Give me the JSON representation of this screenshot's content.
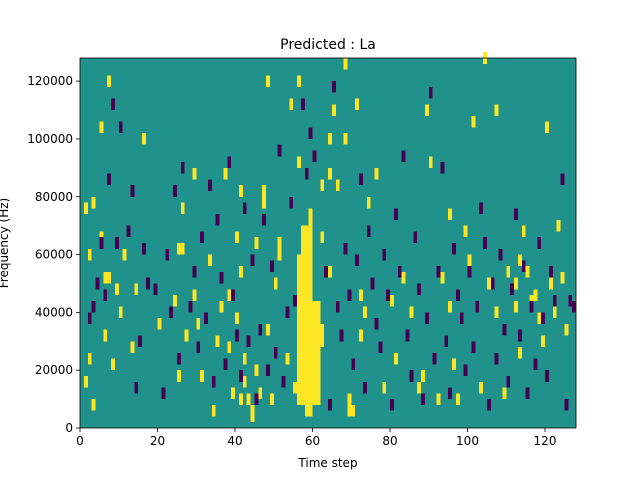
{
  "figure": {
    "title": "Predicted : La"
  },
  "chart_data": {
    "type": "heatmap",
    "title": "Predicted : La",
    "xlabel": "Time step",
    "ylabel": "Frequency (Hz)",
    "xlim": [
      0,
      128
    ],
    "ylim": [
      0,
      128000
    ],
    "xticks": [
      0,
      20,
      40,
      60,
      80,
      100,
      120
    ],
    "yticks": [
      0,
      20000,
      40000,
      60000,
      80000,
      100000,
      120000
    ],
    "xtick_labels": [
      "0",
      "20",
      "40",
      "60",
      "80",
      "100",
      "120"
    ],
    "ytick_labels": [
      "0",
      "20000",
      "40000",
      "60000",
      "80000",
      "100000",
      "120000"
    ],
    "grid": false,
    "legend": "none",
    "colors": {
      "background": "#21918c",
      "high": "#fde725",
      "low": "#440154"
    },
    "value_levels": {
      "background": 0.5,
      "high": 1,
      "low": 0
    },
    "cell_height_hz": 4000,
    "high_columns": [
      [
        56,
        8000,
        60000
      ],
      [
        57,
        8000,
        70000
      ],
      [
        58,
        4000,
        70000
      ],
      [
        59,
        4000,
        76000
      ],
      [
        60,
        8000,
        44000
      ],
      [
        61,
        8000,
        44000
      ],
      [
        62,
        28000,
        36000
      ]
    ],
    "high_cells": [
      [
        1,
        14000
      ],
      [
        1,
        74000
      ],
      [
        2,
        22000
      ],
      [
        2,
        58000
      ],
      [
        3,
        6000
      ],
      [
        3,
        76000
      ],
      [
        5,
        102000
      ],
      [
        5,
        64000
      ],
      [
        6,
        50000
      ],
      [
        6,
        30000
      ],
      [
        7,
        118000
      ],
      [
        7,
        50000
      ],
      [
        8,
        20000
      ],
      [
        9,
        46000
      ],
      [
        10,
        38000
      ],
      [
        11,
        58000
      ],
      [
        13,
        26000
      ],
      [
        14,
        46000
      ],
      [
        16,
        98000
      ],
      [
        20,
        34000
      ],
      [
        24,
        42000
      ],
      [
        25,
        60000
      ],
      [
        25,
        16000
      ],
      [
        26,
        74000
      ],
      [
        26,
        60000
      ],
      [
        27,
        30000
      ],
      [
        29,
        86000
      ],
      [
        29,
        44000
      ],
      [
        30,
        34000
      ],
      [
        31,
        16000
      ],
      [
        33,
        56000
      ],
      [
        34,
        4000
      ],
      [
        35,
        28000
      ],
      [
        36,
        40000
      ],
      [
        37,
        86000
      ],
      [
        38,
        44000
      ],
      [
        38,
        26000
      ],
      [
        39,
        10000
      ],
      [
        40,
        64000
      ],
      [
        40,
        36000
      ],
      [
        41,
        80000
      ],
      [
        41,
        52000
      ],
      [
        41,
        8000
      ],
      [
        42,
        22000
      ],
      [
        42,
        14000
      ],
      [
        43,
        8000
      ],
      [
        44,
        4000
      ],
      [
        44,
        2000
      ],
      [
        45,
        62000
      ],
      [
        45,
        18000
      ],
      [
        46,
        10000
      ],
      [
        47,
        80000
      ],
      [
        47,
        76000
      ],
      [
        48,
        118000
      ],
      [
        48,
        32000
      ],
      [
        49,
        8000
      ],
      [
        50,
        48000
      ],
      [
        51,
        62000
      ],
      [
        51,
        58000
      ],
      [
        53,
        22000
      ],
      [
        54,
        110000
      ],
      [
        55,
        12000
      ],
      [
        56,
        90000
      ],
      [
        56,
        118000
      ],
      [
        62,
        82000
      ],
      [
        62,
        64000
      ],
      [
        64,
        98000
      ],
      [
        64,
        86000
      ],
      [
        64,
        52000
      ],
      [
        65,
        108000
      ],
      [
        66,
        82000
      ],
      [
        68,
        124000
      ],
      [
        68,
        98000
      ],
      [
        69,
        8000
      ],
      [
        69,
        4000
      ],
      [
        70,
        4000
      ],
      [
        71,
        110000
      ],
      [
        72,
        44000
      ],
      [
        72,
        30000
      ],
      [
        73,
        38000
      ],
      [
        74,
        76000
      ],
      [
        76,
        86000
      ],
      [
        78,
        12000
      ],
      [
        80,
        42000
      ],
      [
        81,
        22000
      ],
      [
        83,
        50000
      ],
      [
        85,
        38000
      ],
      [
        87,
        12000
      ],
      [
        88,
        16000
      ],
      [
        89,
        108000
      ],
      [
        90,
        90000
      ],
      [
        92,
        8000
      ],
      [
        93,
        50000
      ],
      [
        95,
        40000
      ],
      [
        95,
        72000
      ],
      [
        96,
        20000
      ],
      [
        97,
        8000
      ],
      [
        99,
        66000
      ],
      [
        100,
        56000
      ],
      [
        101,
        104000
      ],
      [
        103,
        12000
      ],
      [
        104,
        126000
      ],
      [
        105,
        48000
      ],
      [
        107,
        108000
      ],
      [
        107,
        38000
      ],
      [
        109,
        10000
      ],
      [
        110,
        52000
      ],
      [
        112,
        48000
      ],
      [
        112,
        40000
      ],
      [
        113,
        56000
      ],
      [
        113,
        24000
      ],
      [
        114,
        66000
      ],
      [
        115,
        52000
      ],
      [
        116,
        42000
      ],
      [
        117,
        44000
      ],
      [
        118,
        36000
      ],
      [
        119,
        28000
      ],
      [
        120,
        102000
      ],
      [
        121,
        48000
      ],
      [
        122,
        38000
      ],
      [
        123,
        68000
      ],
      [
        124,
        50000
      ],
      [
        125,
        32000
      ]
    ],
    "low_cells": [
      [
        2,
        36000
      ],
      [
        3,
        40000
      ],
      [
        4,
        48000
      ],
      [
        5,
        62000
      ],
      [
        6,
        44000
      ],
      [
        7,
        84000
      ],
      [
        8,
        110000
      ],
      [
        9,
        62000
      ],
      [
        10,
        102000
      ],
      [
        12,
        66000
      ],
      [
        13,
        80000
      ],
      [
        14,
        12000
      ],
      [
        15,
        28000
      ],
      [
        16,
        60000
      ],
      [
        17,
        48000
      ],
      [
        19,
        46000
      ],
      [
        21,
        10000
      ],
      [
        22,
        58000
      ],
      [
        23,
        38000
      ],
      [
        24,
        80000
      ],
      [
        25,
        22000
      ],
      [
        26,
        88000
      ],
      [
        28,
        40000
      ],
      [
        29,
        52000
      ],
      [
        30,
        26000
      ],
      [
        31,
        64000
      ],
      [
        32,
        36000
      ],
      [
        33,
        82000
      ],
      [
        34,
        14000
      ],
      [
        35,
        70000
      ],
      [
        36,
        50000
      ],
      [
        37,
        20000
      ],
      [
        38,
        90000
      ],
      [
        39,
        44000
      ],
      [
        40,
        30000
      ],
      [
        41,
        16000
      ],
      [
        42,
        74000
      ],
      [
        43,
        28000
      ],
      [
        44,
        56000
      ],
      [
        45,
        8000
      ],
      [
        46,
        32000
      ],
      [
        47,
        70000
      ],
      [
        48,
        18000
      ],
      [
        49,
        54000
      ],
      [
        50,
        24000
      ],
      [
        51,
        94000
      ],
      [
        52,
        14000
      ],
      [
        53,
        38000
      ],
      [
        54,
        76000
      ],
      [
        55,
        42000
      ],
      [
        57,
        110000
      ],
      [
        58,
        86000
      ],
      [
        59,
        100000
      ],
      [
        60,
        92000
      ],
      [
        63,
        52000
      ],
      [
        64,
        6000
      ],
      [
        65,
        116000
      ],
      [
        66,
        40000
      ],
      [
        67,
        30000
      ],
      [
        68,
        60000
      ],
      [
        69,
        44000
      ],
      [
        70,
        20000
      ],
      [
        71,
        56000
      ],
      [
        72,
        84000
      ],
      [
        73,
        12000
      ],
      [
        74,
        66000
      ],
      [
        75,
        48000
      ],
      [
        76,
        34000
      ],
      [
        77,
        26000
      ],
      [
        78,
        58000
      ],
      [
        79,
        44000
      ],
      [
        80,
        6000
      ],
      [
        81,
        72000
      ],
      [
        82,
        52000
      ],
      [
        83,
        92000
      ],
      [
        84,
        30000
      ],
      [
        85,
        16000
      ],
      [
        86,
        64000
      ],
      [
        87,
        46000
      ],
      [
        88,
        8000
      ],
      [
        89,
        36000
      ],
      [
        90,
        114000
      ],
      [
        91,
        22000
      ],
      [
        92,
        52000
      ],
      [
        93,
        88000
      ],
      [
        94,
        28000
      ],
      [
        95,
        10000
      ],
      [
        96,
        60000
      ],
      [
        97,
        44000
      ],
      [
        98,
        36000
      ],
      [
        99,
        18000
      ],
      [
        100,
        52000
      ],
      [
        101,
        26000
      ],
      [
        102,
        40000
      ],
      [
        103,
        74000
      ],
      [
        104,
        62000
      ],
      [
        105,
        6000
      ],
      [
        106,
        48000
      ],
      [
        107,
        22000
      ],
      [
        108,
        58000
      ],
      [
        109,
        32000
      ],
      [
        110,
        14000
      ],
      [
        111,
        46000
      ],
      [
        112,
        72000
      ],
      [
        113,
        30000
      ],
      [
        114,
        54000
      ],
      [
        115,
        10000
      ],
      [
        116,
        40000
      ],
      [
        117,
        20000
      ],
      [
        118,
        62000
      ],
      [
        119,
        36000
      ],
      [
        120,
        16000
      ],
      [
        121,
        52000
      ],
      [
        122,
        42000
      ],
      [
        124,
        84000
      ],
      [
        125,
        6000
      ],
      [
        126,
        42000
      ],
      [
        127,
        40000
      ]
    ]
  }
}
